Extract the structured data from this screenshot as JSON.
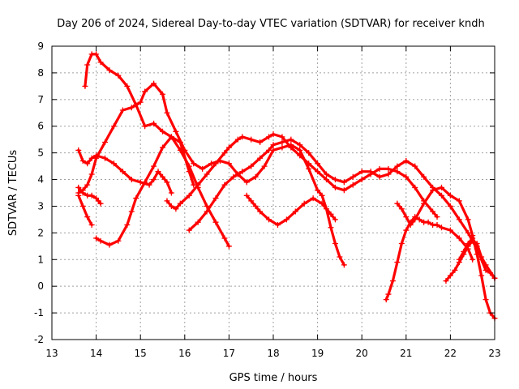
{
  "chart_data": {
    "type": "scatter",
    "title": "Day 206 of 2024, Sidereal Day-to-day VTEC variation (SDTVAR) for receiver kndh",
    "xlabel": "GPS time / hours",
    "ylabel": "SDTVAR / TECUs",
    "xlim": [
      13,
      23
    ],
    "ylim": [
      -2,
      9
    ],
    "xticks": [
      "13",
      "14",
      "15",
      "16",
      "17",
      "18",
      "19",
      "20",
      "21",
      "22",
      "23"
    ],
    "yticks": [
      "-2",
      "-1",
      "0",
      "1",
      "2",
      "3",
      "4",
      "5",
      "6",
      "7",
      "8",
      "9"
    ],
    "grid": true,
    "marker": "+",
    "color": "#ff0000",
    "series": [
      {
        "name": "arc1",
        "x": [
          13.75,
          13.8,
          13.9,
          14.0,
          14.1,
          14.3,
          14.5,
          14.7,
          14.9,
          15.1,
          15.3,
          15.5,
          15.7,
          15.9,
          16.1,
          16.3,
          16.5,
          16.7,
          16.9,
          17.0
        ],
        "y": [
          7.5,
          8.3,
          8.7,
          8.7,
          8.4,
          8.1,
          7.9,
          7.5,
          6.8,
          6.0,
          6.1,
          5.8,
          5.6,
          5.1,
          4.5,
          3.7,
          3.0,
          2.4,
          1.8,
          1.5
        ]
      },
      {
        "name": "arc2",
        "x": [
          14.0,
          14.1,
          14.3,
          14.5,
          14.7,
          14.8,
          14.9,
          15.1,
          15.3,
          15.5,
          15.7,
          15.9,
          16.1,
          16.2
        ],
        "y": [
          1.8,
          1.7,
          1.55,
          1.7,
          2.3,
          2.8,
          3.3,
          3.9,
          4.5,
          5.2,
          5.6,
          5.4,
          4.3,
          3.8
        ]
      },
      {
        "name": "arc3",
        "x": [
          13.6,
          13.7,
          13.8,
          13.9,
          14.0,
          14.2,
          14.4,
          14.6,
          14.8,
          15.0,
          15.2,
          15.3,
          15.4,
          15.5,
          15.6,
          15.7
        ],
        "y": [
          5.1,
          4.7,
          4.6,
          4.8,
          4.9,
          4.8,
          4.6,
          4.3,
          4.0,
          3.9,
          3.8,
          4.0,
          4.3,
          4.1,
          3.9,
          3.5
        ]
      },
      {
        "name": "arc4",
        "x": [
          13.6,
          13.7,
          13.8,
          13.9,
          14.0,
          14.2,
          14.4,
          14.6,
          14.8,
          15.0,
          15.1,
          15.3,
          15.5,
          15.6,
          15.8,
          16.0,
          16.2,
          16.4,
          16.6,
          16.8,
          17.0,
          17.2,
          17.4,
          17.6,
          17.8,
          18.0,
          18.2,
          18.4,
          18.6,
          18.8,
          19.0,
          19.1,
          19.2,
          19.3,
          19.4,
          19.5,
          19.6
        ],
        "y": [
          3.5,
          3.6,
          3.8,
          4.2,
          4.8,
          5.4,
          6.0,
          6.6,
          6.7,
          6.9,
          7.3,
          7.6,
          7.2,
          6.5,
          5.8,
          5.1,
          4.6,
          4.4,
          4.6,
          4.7,
          4.6,
          4.2,
          3.9,
          4.1,
          4.5,
          5.1,
          5.2,
          5.3,
          5.1,
          4.4,
          3.6,
          3.4,
          2.9,
          2.2,
          1.6,
          1.1,
          0.8
        ]
      },
      {
        "name": "arc5",
        "x": [
          13.6,
          13.65,
          13.7,
          13.8,
          13.9,
          14.0,
          14.05,
          14.1
        ],
        "y": [
          3.7,
          3.6,
          3.5,
          3.4,
          3.4,
          3.3,
          3.2,
          3.1
        ]
      },
      {
        "name": "arc6",
        "x": [
          13.6,
          13.7,
          13.8,
          13.9
        ],
        "y": [
          3.4,
          3.0,
          2.6,
          2.3
        ]
      },
      {
        "name": "arc7",
        "x": [
          15.6,
          15.7,
          15.8,
          15.9,
          16.1,
          16.3,
          16.5,
          16.7,
          16.9,
          17.0,
          17.2,
          17.3,
          17.5,
          17.7,
          17.9,
          18.0,
          18.2,
          18.4,
          18.6,
          18.8,
          19.0,
          19.2,
          19.4,
          19.6,
          19.8,
          20.0,
          20.2,
          20.4,
          20.6,
          20.8,
          21.0,
          21.2,
          21.4,
          21.6,
          21.7
        ],
        "y": [
          3.2,
          3.0,
          2.9,
          3.1,
          3.4,
          3.8,
          4.2,
          4.6,
          5.0,
          5.2,
          5.5,
          5.6,
          5.5,
          5.4,
          5.6,
          5.7,
          5.6,
          5.2,
          4.9,
          4.6,
          4.3,
          4.0,
          3.7,
          3.6,
          3.8,
          4.0,
          4.2,
          4.4,
          4.4,
          4.3,
          4.1,
          3.7,
          3.2,
          2.8,
          2.6
        ]
      },
      {
        "name": "arc8",
        "x": [
          16.1,
          16.3,
          16.5,
          16.7,
          16.9,
          17.1,
          17.3,
          17.5,
          17.7,
          17.9,
          18.0,
          18.2,
          18.4,
          18.6,
          18.8,
          19.0,
          19.2,
          19.4,
          19.6,
          19.8,
          20.0,
          20.2,
          20.4,
          20.6,
          20.8,
          21.0,
          21.2,
          21.4,
          21.6,
          21.8,
          22.0,
          22.2,
          22.4,
          22.6,
          22.8,
          23.0
        ],
        "y": [
          2.1,
          2.4,
          2.8,
          3.3,
          3.8,
          4.1,
          4.3,
          4.5,
          4.8,
          5.1,
          5.3,
          5.4,
          5.5,
          5.3,
          5.0,
          4.6,
          4.2,
          4.0,
          3.9,
          4.1,
          4.3,
          4.3,
          4.1,
          4.2,
          4.5,
          4.7,
          4.5,
          4.1,
          3.7,
          3.4,
          3.0,
          2.5,
          2.0,
          1.4,
          0.8,
          0.3
        ]
      },
      {
        "name": "arc9",
        "x": [
          17.4,
          17.5,
          17.6,
          17.7,
          17.9,
          18.1,
          18.3,
          18.5,
          18.7,
          18.9,
          19.1,
          19.3,
          19.4
        ],
        "y": [
          3.4,
          3.2,
          3.0,
          2.8,
          2.5,
          2.3,
          2.5,
          2.8,
          3.1,
          3.3,
          3.1,
          2.7,
          2.5
        ]
      },
      {
        "name": "arc10",
        "x": [
          20.55,
          20.6,
          20.7,
          20.8,
          20.9,
          21.0,
          21.1,
          21.2,
          21.3,
          21.4,
          21.5,
          21.6,
          21.7,
          21.8,
          22.0,
          22.2,
          22.4,
          22.5
        ],
        "y": [
          -0.5,
          -0.3,
          0.2,
          0.9,
          1.6,
          2.1,
          2.4,
          2.6,
          2.5,
          2.4,
          2.4,
          2.3,
          2.3,
          2.2,
          2.1,
          1.8,
          1.4,
          1.0
        ]
      },
      {
        "name": "arc11",
        "x": [
          20.8,
          20.9,
          21.0,
          21.1,
          21.2,
          21.4,
          21.6,
          21.8,
          22.0,
          22.2,
          22.4,
          22.5,
          22.6,
          22.7,
          22.8,
          22.9,
          23.0
        ],
        "y": [
          3.1,
          2.9,
          2.6,
          2.3,
          2.5,
          3.1,
          3.6,
          3.7,
          3.4,
          3.2,
          2.5,
          1.9,
          1.2,
          0.4,
          -0.5,
          -1.0,
          -1.2
        ]
      },
      {
        "name": "arc12",
        "x": [
          21.9,
          22.0,
          22.1,
          22.2,
          22.3,
          22.4,
          22.5,
          22.6,
          22.7
        ],
        "y": [
          0.2,
          0.4,
          0.6,
          0.9,
          1.2,
          1.5,
          1.7,
          1.6,
          1.1
        ]
      },
      {
        "name": "arc13",
        "x": [
          22.2,
          22.3,
          22.4,
          22.5,
          22.6,
          22.7,
          22.8,
          22.9,
          23.0
        ],
        "y": [
          1.0,
          1.3,
          1.6,
          1.8,
          1.5,
          1.0,
          0.6,
          0.5,
          0.3
        ]
      }
    ]
  }
}
